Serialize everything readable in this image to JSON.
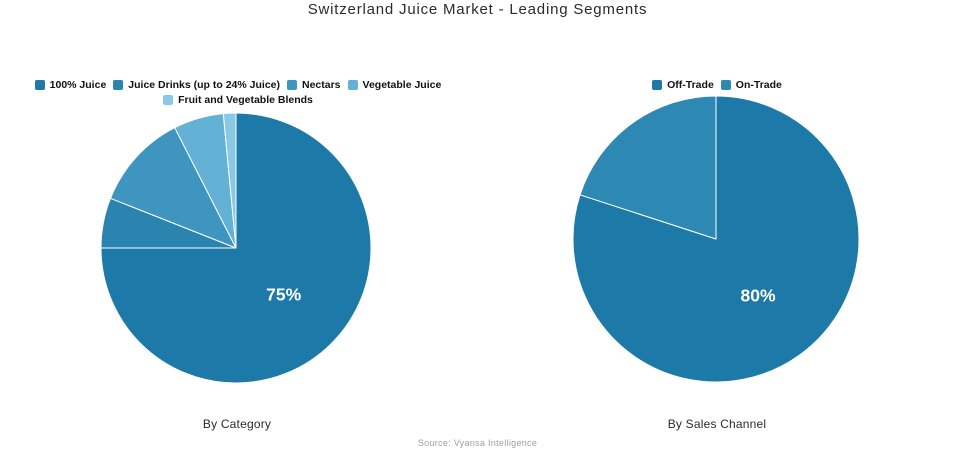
{
  "title": "Switzerland Juice Market - Leading Segments",
  "source": "Source: Vyansa Intelligence",
  "colors": {
    "background": "#ffffff",
    "title_text": "#2b2b2b",
    "caption_text": "#2b2b2b",
    "source_text": "#9e9e9e",
    "slice_label_text": "#ffffff",
    "slice_border": "#ffffff"
  },
  "chart_data": [
    {
      "type": "pie",
      "title": "By Category",
      "labels": [
        "100% Juice",
        "Juice Drinks (up to 24% Juice)",
        "Nectars",
        "Vegetable Juice",
        "Fruit and Vegetable Blends"
      ],
      "values": [
        75,
        6,
        11.5,
        6,
        1.5
      ],
      "colors": [
        "#1d79a8",
        "#2b84b0",
        "#3e95c0",
        "#63b1d5",
        "#8ac9e5"
      ],
      "shown_labels": [
        "75%",
        null,
        null,
        null,
        null
      ],
      "start_angle_deg": 0,
      "direction": "clockwise",
      "legend_position": "top",
      "radius_px": 135
    },
    {
      "type": "pie",
      "title": "By Sales Channel",
      "labels": [
        "Off-Trade",
        "On-Trade"
      ],
      "values": [
        80,
        20
      ],
      "colors": [
        "#1d79a8",
        "#2e88b4"
      ],
      "shown_labels": [
        "80%",
        null
      ],
      "start_angle_deg": 0,
      "direction": "clockwise",
      "legend_position": "top",
      "radius_px": 143
    }
  ]
}
